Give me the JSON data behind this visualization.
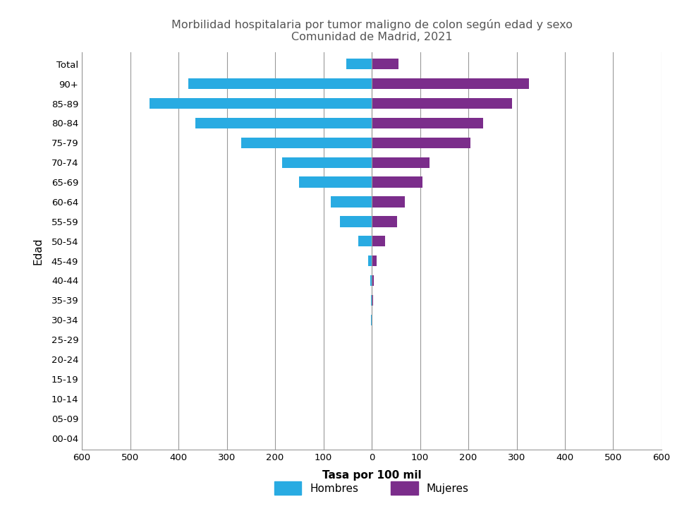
{
  "title_line1": "Morbilidad hospitalaria por tumor maligno de colon según edad y sexo",
  "title_line2": "Comunidad de Madrid, 2021",
  "xlabel": "Tasa por 100 mil",
  "ylabel": "Edad",
  "age_groups": [
    "00-04",
    "05-09",
    "10-14",
    "15-19",
    "20-24",
    "25-29",
    "30-34",
    "35-39",
    "40-44",
    "45-49",
    "50-54",
    "55-59",
    "60-64",
    "65-69",
    "70-74",
    "75-79",
    "80-84",
    "85-89",
    "90+",
    "Total"
  ],
  "hombres": [
    0,
    0,
    0,
    0,
    0,
    0.5,
    1,
    2,
    3,
    8,
    28,
    65,
    85,
    150,
    185,
    270,
    365,
    460,
    380,
    53
  ],
  "mujeres": [
    0,
    0,
    0,
    0,
    0,
    1,
    2,
    3,
    5,
    10,
    28,
    52,
    68,
    105,
    120,
    205,
    230,
    290,
    325,
    55
  ],
  "color_hombres": "#29ABE2",
  "color_mujeres": "#7B2D8B",
  "xlim": 600,
  "background_color": "#ffffff",
  "grid_color": "#999999",
  "title_color": "#555555",
  "legend_label_hombres": "Hombres",
  "legend_label_mujeres": "Mujeres"
}
